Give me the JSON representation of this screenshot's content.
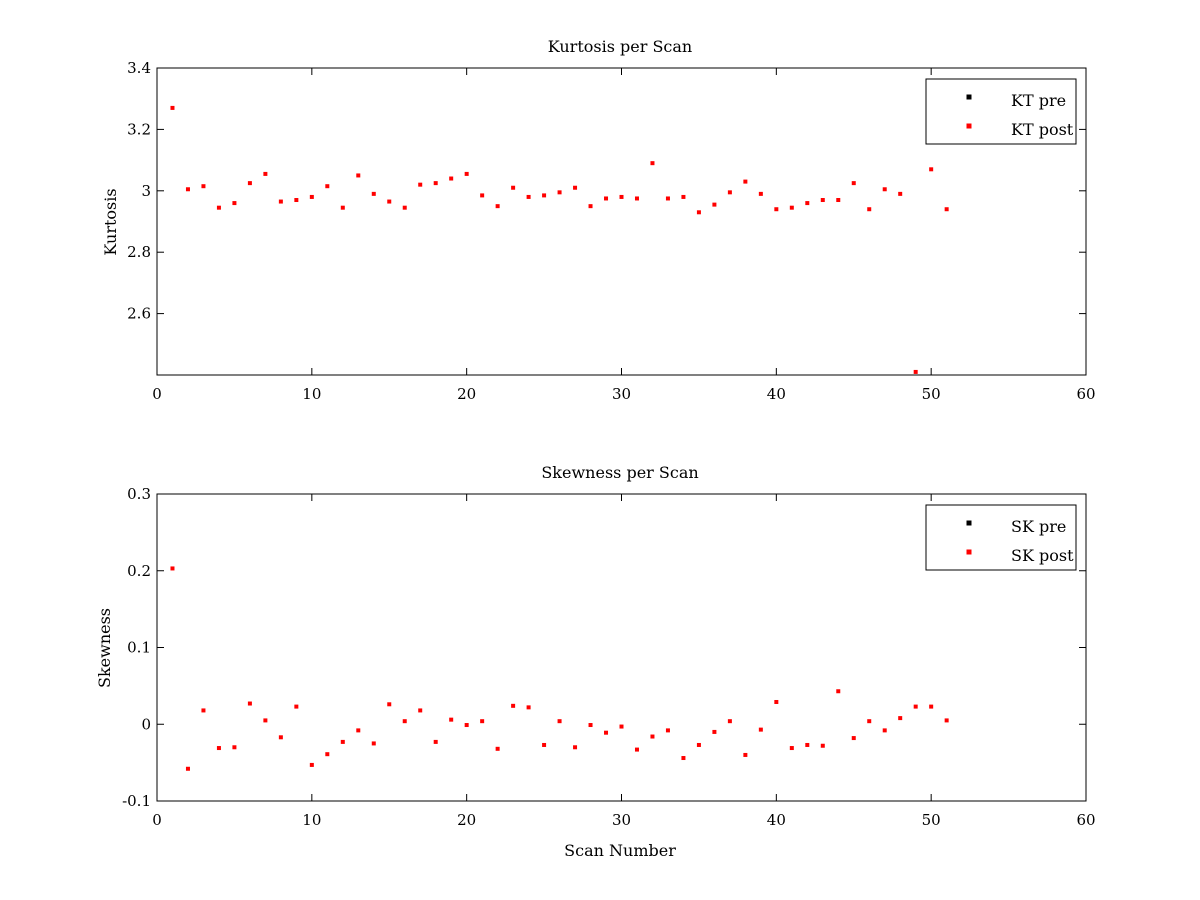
{
  "colors": {
    "pre": "#000000",
    "post": "#ff0000",
    "axis": "#000000",
    "background": "#ffffff"
  },
  "chart_data": [
    {
      "type": "scatter",
      "title": "Kurtosis per Scan",
      "xlabel": "",
      "ylabel": "Kurtosis",
      "xlim": [
        0,
        60
      ],
      "ylim": [
        2.4,
        3.4
      ],
      "xticks": [
        0,
        10,
        20,
        30,
        40,
        50,
        60
      ],
      "xtick_labels": [
        "0",
        "10",
        "20",
        "30",
        "40",
        "50",
        "60"
      ],
      "yticks": [
        2.6,
        2.8,
        3.0,
        3.2,
        3.4
      ],
      "ytick_labels": [
        "2.6",
        "2.8",
        "3",
        "3.2",
        "3.4"
      ],
      "grid": false,
      "legend_position": "top-right",
      "series": [
        {
          "name": "KT pre",
          "color": "#000000",
          "x": [],
          "y": []
        },
        {
          "name": "KT post",
          "color": "#ff0000",
          "x": [
            1,
            2,
            3,
            4,
            5,
            6,
            7,
            8,
            9,
            10,
            11,
            12,
            13,
            14,
            15,
            16,
            17,
            18,
            19,
            20,
            21,
            22,
            23,
            24,
            25,
            26,
            27,
            28,
            29,
            30,
            31,
            32,
            33,
            34,
            35,
            36,
            37,
            38,
            39,
            40,
            41,
            42,
            43,
            44,
            45,
            46,
            47,
            48,
            49,
            50,
            51
          ],
          "y": [
            3.27,
            3.005,
            3.015,
            2.945,
            2.96,
            3.025,
            3.055,
            2.965,
            2.97,
            2.98,
            3.015,
            2.945,
            3.05,
            2.99,
            2.965,
            2.945,
            3.02,
            3.025,
            3.04,
            3.055,
            2.985,
            2.95,
            3.01,
            2.98,
            2.985,
            2.995,
            3.01,
            2.95,
            2.975,
            2.98,
            2.975,
            3.09,
            2.975,
            2.98,
            2.93,
            2.955,
            2.995,
            3.03,
            2.99,
            2.94,
            2.945,
            2.96,
            2.97,
            2.97,
            3.025,
            2.94,
            3.005,
            2.99,
            2.41,
            3.07,
            2.94
          ]
        }
      ]
    },
    {
      "type": "scatter",
      "title": "Skewness per Scan",
      "xlabel": "Scan Number",
      "ylabel": "Skewness",
      "xlim": [
        0,
        60
      ],
      "ylim": [
        -0.1,
        0.3
      ],
      "xticks": [
        0,
        10,
        20,
        30,
        40,
        50,
        60
      ],
      "xtick_labels": [
        "0",
        "10",
        "20",
        "30",
        "40",
        "50",
        "60"
      ],
      "yticks": [
        -0.1,
        0,
        0.1,
        0.2,
        0.3
      ],
      "ytick_labels": [
        "-0.1",
        "0",
        "0.1",
        "0.2",
        "0.3"
      ],
      "grid": false,
      "legend_position": "top-right",
      "series": [
        {
          "name": "SK pre",
          "color": "#000000",
          "x": [],
          "y": []
        },
        {
          "name": "SK post",
          "color": "#ff0000",
          "x": [
            1,
            2,
            3,
            4,
            5,
            6,
            7,
            8,
            9,
            10,
            11,
            12,
            13,
            14,
            15,
            16,
            17,
            18,
            19,
            20,
            21,
            22,
            23,
            24,
            25,
            26,
            27,
            28,
            29,
            30,
            31,
            32,
            33,
            34,
            35,
            36,
            37,
            38,
            39,
            40,
            41,
            42,
            43,
            44,
            45,
            46,
            47,
            48,
            49,
            50,
            51
          ],
          "y": [
            0.203,
            -0.058,
            0.018,
            -0.031,
            -0.03,
            0.027,
            0.005,
            -0.017,
            0.023,
            -0.053,
            -0.039,
            -0.023,
            -0.008,
            -0.025,
            0.026,
            0.004,
            0.018,
            -0.023,
            0.006,
            -0.001,
            0.004,
            -0.032,
            0.024,
            0.022,
            -0.027,
            0.004,
            -0.03,
            -0.001,
            -0.011,
            -0.003,
            -0.033,
            -0.016,
            -0.008,
            -0.044,
            -0.027,
            -0.01,
            0.004,
            -0.04,
            -0.007,
            0.029,
            -0.031,
            -0.027,
            -0.028,
            0.043,
            -0.018,
            0.004,
            -0.008,
            0.008,
            0.023,
            0.023,
            0.005
          ]
        }
      ]
    }
  ]
}
